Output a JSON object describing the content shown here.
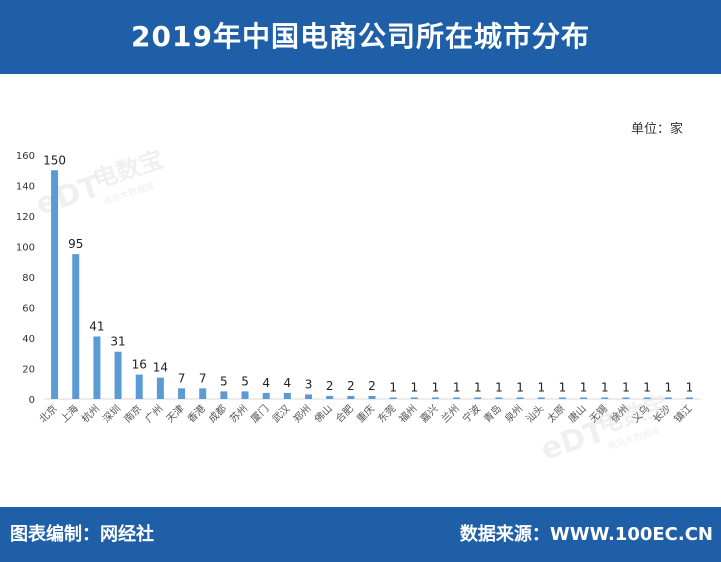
{
  "header": {
    "title": "2019年中国电商公司所在城市分布"
  },
  "unit_label": "单位：家",
  "footer": {
    "left": "图表编制：网经社",
    "right": "数据来源：WWW.100EC.CN"
  },
  "watermark": {
    "brand": "电数宝",
    "sub": "电商大数据库",
    "logo": "eDT"
  },
  "colors": {
    "header_bg": "#1f5fa8",
    "bar": "#5b9bd5"
  },
  "chart_data": {
    "type": "bar",
    "title": "2019年中国电商公司所在城市分布",
    "xlabel": "",
    "ylabel": "",
    "ylim": [
      0,
      160
    ],
    "yticks": [
      0,
      20,
      40,
      60,
      80,
      100,
      120,
      140,
      160
    ],
    "grid": false,
    "categories": [
      "北京",
      "上海",
      "杭州",
      "深圳",
      "南京",
      "广州",
      "天津",
      "香港",
      "成都",
      "苏州",
      "厦门",
      "武汉",
      "郑州",
      "佛山",
      "合肥",
      "重庆",
      "东莞",
      "福州",
      "嘉兴",
      "兰州",
      "宁波",
      "青岛",
      "泉州",
      "汕头",
      "太原",
      "唐山",
      "无锡",
      "徐州",
      "义乌",
      "长沙",
      "镇江"
    ],
    "values": [
      150,
      95,
      41,
      31,
      16,
      14,
      7,
      7,
      5,
      5,
      4,
      4,
      3,
      2,
      2,
      2,
      1,
      1,
      1,
      1,
      1,
      1,
      1,
      1,
      1,
      1,
      1,
      1,
      1,
      1,
      1
    ]
  }
}
